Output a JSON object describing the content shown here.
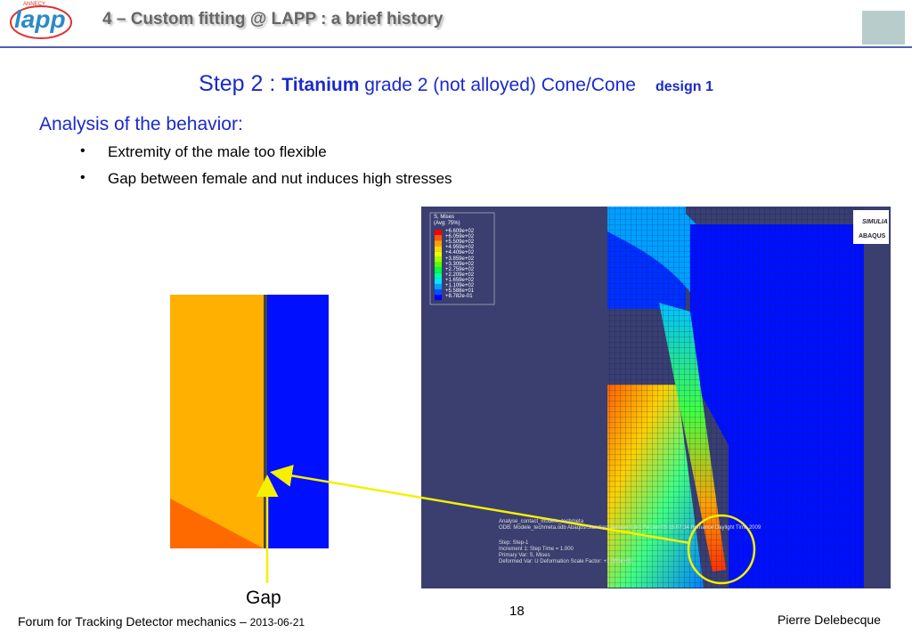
{
  "header": {
    "logo": "lapp",
    "logo_sub": "ANNECY",
    "title": "4 – Custom fitting @ LAPP : a brief history"
  },
  "step": {
    "prefix": "Step 2 : ",
    "material": "Titanium",
    "rest": " grade 2 (not alloyed) Cone/Cone",
    "design": "design 1"
  },
  "analysis": {
    "heading": "Analysis of the behavior:",
    "bullets": [
      "Extremity of the male too flexible",
      "Gap between female and nut induces high stresses"
    ]
  },
  "fea": {
    "legend_title": "S, Mises",
    "legend_avg": "(Avg: 75%)",
    "legend": [
      "+6.609e+02",
      "+6.059e+02",
      "+5.509e+02",
      "+4.959e+02",
      "+4.409e+02",
      "+3.859e+02",
      "+3.309e+02",
      "+2.759e+02",
      "+2.209e+02",
      "+1.659e+02",
      "+1.109e+02",
      "+5.588e+01",
      "+8.782e-01"
    ],
    "legend_colors": [
      "#ff0000",
      "#ff5a00",
      "#ffa000",
      "#ffd800",
      "#e8ff00",
      "#a0ff00",
      "#50ff00",
      "#00ff40",
      "#00ffa0",
      "#00e8ff",
      "#00a0ff",
      "#0050ff",
      "#0000ff"
    ],
    "brand1": "SIMULIA",
    "brand2": "ABAQUS",
    "info": [
      "Analyse_contact_modele_techmeta",
      "ODB: Modele_techmeta.odb   Abaqus/Standard Version 6.8-1   Fri Jun 05 15:07:34 Romance Daylight Time 2009",
      "Step: Step-1",
      "Increment    1: Step Time =    1.000",
      "Primary Var: S, Mises",
      "Deformed Var: U   Deformation Scale Factor: +1.000e+00"
    ]
  },
  "gap_label": "Gap",
  "footer": {
    "forum": "Forum for Tracking Detector mechanics – ",
    "date": "2013-06-21",
    "page": "18",
    "author": "Pierre Delebecque"
  }
}
